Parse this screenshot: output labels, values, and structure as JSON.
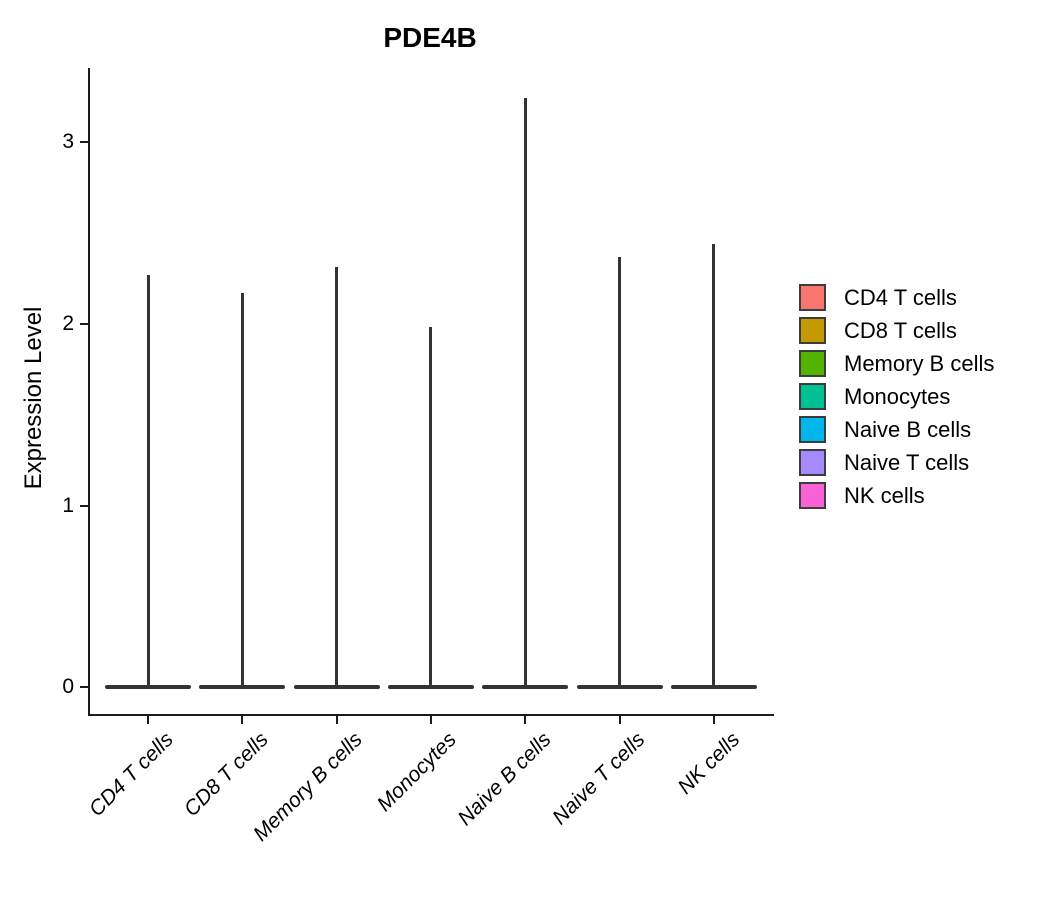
{
  "title": "PDE4B",
  "axes": {
    "ylabel": "Expression Level"
  },
  "chart_data": {
    "type": "violin",
    "title": "PDE4B",
    "xlabel": "",
    "ylabel": "Expression Level",
    "categories": [
      "CD4 T cells",
      "CD8 T cells",
      "Memory B cells",
      "Monocytes",
      "Naive B cells",
      "Naive T cells",
      "NK cells"
    ],
    "series": [
      {
        "name": "CD4 T cells",
        "color": "#F8766D",
        "bulk_value": 0,
        "max_expression": 2.27
      },
      {
        "name": "CD8 T cells",
        "color": "#C49A00",
        "bulk_value": 0,
        "max_expression": 2.17
      },
      {
        "name": "Memory B cells",
        "color": "#53B400",
        "bulk_value": 0,
        "max_expression": 2.31
      },
      {
        "name": "Monocytes",
        "color": "#00C094",
        "bulk_value": 0,
        "max_expression": 1.98
      },
      {
        "name": "Naive B cells",
        "color": "#00B6EB",
        "bulk_value": 0,
        "max_expression": 3.24
      },
      {
        "name": "Naive T cells",
        "color": "#A58AFF",
        "bulk_value": 0,
        "max_expression": 2.37
      },
      {
        "name": "NK cells",
        "color": "#FB61D7",
        "bulk_value": 0,
        "max_expression": 2.44
      }
    ],
    "yticks": [
      "0",
      "1",
      "2",
      "3"
    ],
    "ytick_values": [
      0,
      1,
      2,
      3
    ],
    "ylim": [
      -0.146,
      3.407
    ],
    "grid": false,
    "legend_position": "right",
    "violin_outline_color": "#333333",
    "note": "violins are near-flat at 0 with thin density spikes up to max_expression"
  },
  "legend": {
    "items": [
      "CD4 T cells",
      "CD8 T cells",
      "Memory B cells",
      "Monocytes",
      "Naive B cells",
      "Naive T cells",
      "NK cells"
    ]
  }
}
